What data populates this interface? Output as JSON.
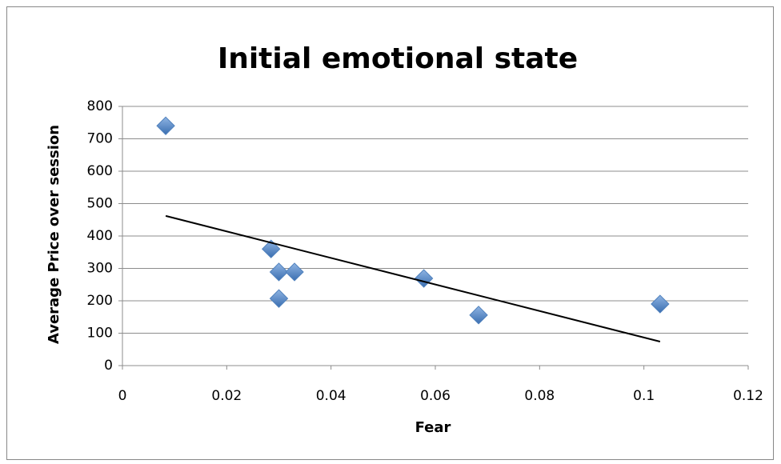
{
  "chart_data": {
    "type": "scatter",
    "title": "Initial emotional state",
    "x_label": "Fear",
    "y_label": "Average Price over session",
    "series": [
      {
        "color": "#4f81bd",
        "x": [
          0.0083,
          0.0285,
          0.03,
          0.033,
          0.03,
          0.0578,
          0.0683,
          0.1031
        ],
        "values": [
          740,
          360,
          289,
          289,
          207,
          269,
          156,
          190
        ]
      }
    ],
    "trendline": {
      "x": [
        0.0083,
        0.1031
      ],
      "values": [
        462,
        74
      ],
      "color": "#000000"
    },
    "xlim": [
      0,
      0.12
    ],
    "xticks": [
      0,
      0.02,
      0.04,
      0.06,
      0.08,
      0.1,
      0.12
    ],
    "ylim": [
      0,
      800
    ],
    "yticks": [
      0,
      100,
      200,
      300,
      400,
      500,
      600,
      700,
      800
    ],
    "grid": true
  }
}
